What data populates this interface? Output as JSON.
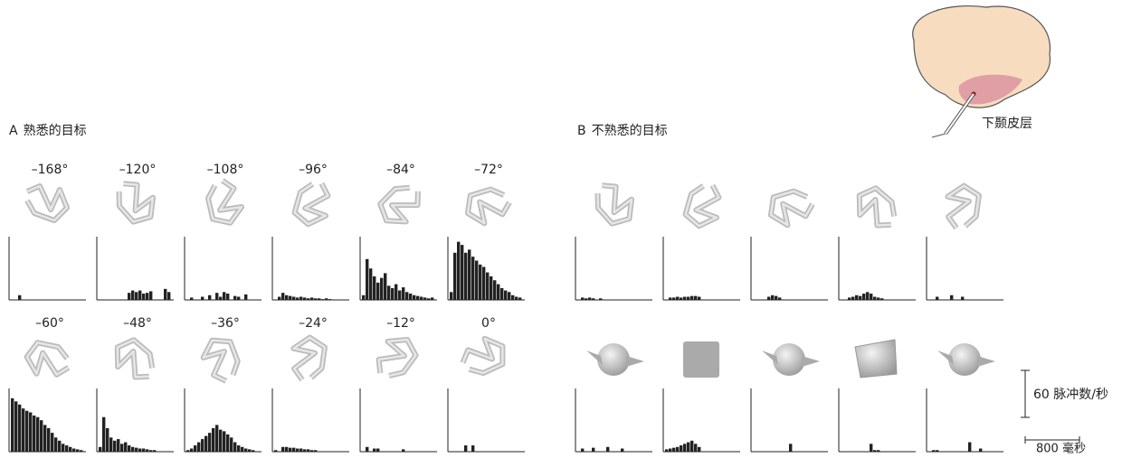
{
  "panel_a": {
    "label": "A",
    "title": "熟悉的目标",
    "views": [
      {
        "angle": "–168°",
        "histogram": [
          0,
          0,
          6,
          0,
          0,
          0,
          0,
          0,
          0,
          0,
          0,
          0,
          0,
          0,
          0,
          0,
          0,
          0,
          0,
          0
        ]
      },
      {
        "angle": "–120°",
        "histogram": [
          0,
          0,
          0,
          0,
          0,
          0,
          0,
          0,
          9,
          12,
          10,
          12,
          8,
          9,
          11,
          0,
          0,
          0,
          14,
          10
        ]
      },
      {
        "angle": "–108°",
        "histogram": [
          0,
          3,
          0,
          0,
          4,
          0,
          6,
          0,
          9,
          4,
          10,
          8,
          0,
          5,
          4,
          0,
          7,
          0,
          0,
          0
        ]
      },
      {
        "angle": "–96°",
        "histogram": [
          0,
          4,
          9,
          6,
          5,
          4,
          3,
          4,
          3,
          2,
          3,
          2,
          2,
          1,
          2,
          1,
          0,
          0,
          0,
          0
        ]
      },
      {
        "angle": "–84°",
        "histogram": [
          6,
          52,
          40,
          30,
          22,
          28,
          34,
          18,
          15,
          20,
          12,
          16,
          10,
          8,
          6,
          5,
          4,
          3,
          2,
          3
        ]
      },
      {
        "angle": "–72°",
        "histogram": [
          10,
          60,
          74,
          70,
          60,
          64,
          55,
          50,
          45,
          42,
          35,
          30,
          25,
          20,
          15,
          12,
          10,
          6,
          4,
          3
        ]
      },
      {
        "angle": "–60°",
        "histogram": [
          68,
          64,
          60,
          55,
          52,
          50,
          46,
          44,
          40,
          34,
          30,
          24,
          18,
          14,
          10,
          8,
          6,
          4,
          3,
          2
        ]
      },
      {
        "angle": "–48°",
        "histogram": [
          6,
          44,
          30,
          18,
          14,
          16,
          10,
          12,
          8,
          6,
          5,
          4,
          4,
          3,
          2,
          2,
          0,
          0,
          0,
          0
        ]
      },
      {
        "angle": "–36°",
        "histogram": [
          2,
          4,
          8,
          12,
          16,
          20,
          24,
          30,
          34,
          28,
          26,
          22,
          18,
          12,
          8,
          6,
          4,
          3,
          2,
          0
        ]
      },
      {
        "angle": "–24°",
        "histogram": [
          2,
          0,
          6,
          6,
          5,
          5,
          4,
          4,
          3,
          3,
          2,
          2,
          0,
          0,
          0,
          0,
          0,
          0,
          0,
          0
        ]
      },
      {
        "angle": "–12°",
        "histogram": [
          0,
          6,
          0,
          4,
          4,
          0,
          0,
          0,
          0,
          0,
          0,
          3,
          0,
          0,
          0,
          0,
          0,
          0,
          0,
          0
        ]
      },
      {
        "angle": "0°",
        "histogram": [
          0,
          0,
          0,
          0,
          8,
          0,
          8,
          0,
          0,
          0,
          0,
          0,
          0,
          0,
          0,
          0,
          0,
          0,
          0,
          0
        ]
      }
    ]
  },
  "panel_b": {
    "label": "B",
    "title": "不熟悉的目标",
    "objects": [
      {
        "histogram": [
          0,
          3,
          2,
          3,
          2,
          0,
          2,
          0,
          0,
          0,
          0,
          0,
          0,
          0,
          0,
          0,
          0,
          0,
          0,
          0
        ]
      },
      {
        "histogram": [
          0,
          3,
          3,
          4,
          3,
          4,
          4,
          5,
          5,
          4,
          0,
          0,
          0,
          0,
          0,
          0,
          0,
          0,
          0,
          0
        ]
      },
      {
        "histogram": [
          0,
          0,
          0,
          0,
          4,
          6,
          5,
          3,
          0,
          0,
          0,
          0,
          0,
          0,
          0,
          0,
          0,
          0,
          0,
          0
        ]
      },
      {
        "histogram": [
          0,
          0,
          3,
          4,
          6,
          5,
          8,
          10,
          8,
          4,
          3,
          2,
          0,
          0,
          0,
          0,
          0,
          0,
          0,
          0
        ]
      },
      {
        "histogram": [
          0,
          0,
          4,
          0,
          0,
          0,
          6,
          0,
          0,
          4,
          0,
          0,
          0,
          0,
          0,
          0,
          0,
          0,
          0,
          0
        ]
      },
      {
        "histogram": [
          0,
          4,
          0,
          0,
          5,
          0,
          0,
          0,
          6,
          0,
          0,
          0,
          4,
          0,
          0,
          0,
          0,
          0,
          0,
          0
        ]
      },
      {
        "histogram": [
          3,
          4,
          5,
          6,
          8,
          10,
          12,
          14,
          10,
          6,
          0,
          0,
          0,
          0,
          0,
          0,
          0,
          0,
          0,
          0
        ]
      },
      {
        "histogram": [
          0,
          0,
          0,
          0,
          0,
          0,
          0,
          0,
          0,
          0,
          10,
          0,
          0,
          0,
          0,
          0,
          0,
          0,
          0,
          0
        ]
      },
      {
        "histogram": [
          0,
          0,
          0,
          0,
          0,
          0,
          0,
          0,
          10,
          2,
          2,
          0,
          0,
          0,
          0,
          0,
          0,
          0,
          0,
          0
        ]
      },
      {
        "histogram": [
          0,
          2,
          2,
          0,
          0,
          0,
          0,
          0,
          0,
          0,
          0,
          12,
          0,
          0,
          4,
          0,
          0,
          0,
          0,
          0
        ]
      }
    ]
  },
  "brain_label": "下颞皮层",
  "scale_bar": {
    "rate": "60 脉冲数/秒",
    "time": "800 毫秒"
  }
}
